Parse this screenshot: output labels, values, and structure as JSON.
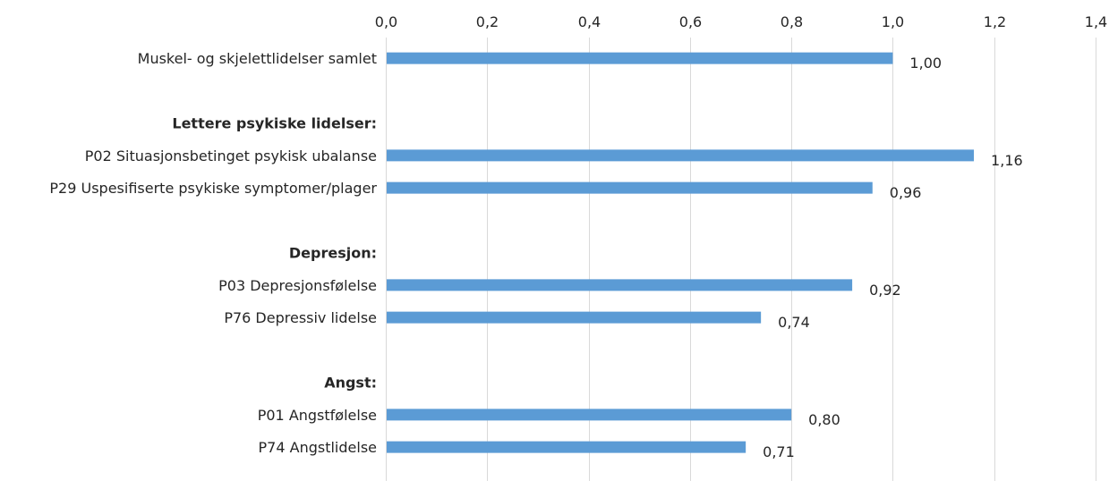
{
  "chart_data": {
    "type": "bar",
    "orientation": "horizontal",
    "title": "",
    "xlabel": "",
    "ylabel": "",
    "xlim": [
      0,
      1.4
    ],
    "x_ticks": [
      0,
      0.2,
      0.4,
      0.6,
      0.8,
      1.0,
      1.2,
      1.4
    ],
    "x_tick_labels": [
      "0,0",
      "0,2",
      "0,4",
      "0,6",
      "0,8",
      "1,0",
      "1,2",
      "1,4"
    ],
    "x_axis_position": "top",
    "grid": true,
    "legend": "none",
    "bar_color": "#5b9bd5",
    "rows": [
      {
        "label": "Muskel- og skjelettlidelser samlet",
        "value": 1.0,
        "value_label": "1,00",
        "header": false
      },
      {
        "label": "",
        "value": null,
        "value_label": "",
        "header": false
      },
      {
        "label": "Lettere psykiske lidelser:",
        "value": null,
        "value_label": "",
        "header": true
      },
      {
        "label": "P02 Situasjonsbetinget psykisk ubalanse",
        "value": 1.16,
        "value_label": "1,16",
        "header": false
      },
      {
        "label": "P29 Uspesifiserte psykiske symptomer/plager",
        "value": 0.96,
        "value_label": "0,96",
        "header": false
      },
      {
        "label": "",
        "value": null,
        "value_label": "",
        "header": false
      },
      {
        "label": "Depresjon:",
        "value": null,
        "value_label": "",
        "header": true
      },
      {
        "label": "P03 Depresjonsfølelse",
        "value": 0.92,
        "value_label": "0,92",
        "header": false
      },
      {
        "label": "P76 Depressiv lidelse",
        "value": 0.74,
        "value_label": "0,74",
        "header": false
      },
      {
        "label": "",
        "value": null,
        "value_label": "",
        "header": false
      },
      {
        "label": "Angst:",
        "value": null,
        "value_label": "",
        "header": true
      },
      {
        "label": "P01 Angstfølelse",
        "value": 0.8,
        "value_label": "0,80",
        "header": false
      },
      {
        "label": "P74 Angstlidelse",
        "value": 0.71,
        "value_label": "0,71",
        "header": false
      }
    ]
  }
}
